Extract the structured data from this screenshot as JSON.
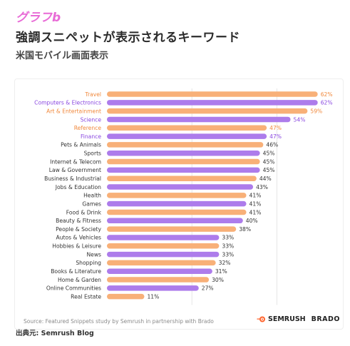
{
  "header": {
    "tag": "グラフb",
    "title": "強調スニペットが表示されるキーワード",
    "subtitle": "米国モバイル画面表示"
  },
  "footer": {
    "source": "Source: Featured Snippets study by Semrush in partnership with Brado",
    "credit": "出典元: Semrush Blog",
    "semrush_logo": "SEMRUSH",
    "brado_logo": "BRADO"
  },
  "colors": {
    "orange": "#f8b078",
    "purple": "#ad7ceb",
    "orange_label": "#f0883c",
    "purple_label": "#8a48e0",
    "dark_label": "#333333"
  },
  "chart_data": {
    "type": "bar",
    "orientation": "horizontal",
    "categories": [
      "Travel",
      "Computers & Electronics",
      "Art & Entertainment",
      "Science",
      "Reference",
      "Finance",
      "Pets & Animals",
      "Sports",
      "Internet & Telecom",
      "Law & Government",
      "Business & Industrial",
      "Jobs & Education",
      "Health",
      "Games",
      "Food & Drink",
      "Beauty & Fitness",
      "People & Society",
      "Autos & Vehicles",
      "Hobbies & Leisure",
      "News",
      "Shopping",
      "Books & Literature",
      "Home & Garden",
      "Online Communities",
      "Real Estate"
    ],
    "values": [
      62,
      62,
      59,
      54,
      47,
      47,
      46,
      45,
      45,
      45,
      44,
      43,
      41,
      41,
      41,
      40,
      38,
      33,
      33,
      33,
      32,
      31,
      30,
      27,
      11
    ],
    "value_labels": [
      "62%",
      "62%",
      "59%",
      "54%",
      "47%",
      "47%",
      "46%",
      "45%",
      "45%",
      "45%",
      "44%",
      "43%",
      "41%",
      "41%",
      "41%",
      "40%",
      "38%",
      "33%",
      "33%",
      "33%",
      "32%",
      "31%",
      "30%",
      "27%",
      "11%"
    ],
    "bar_colors": [
      "orange",
      "purple",
      "orange",
      "purple",
      "orange",
      "purple",
      "orange",
      "purple",
      "orange",
      "purple",
      "orange",
      "purple",
      "orange",
      "purple",
      "orange",
      "purple",
      "orange",
      "purple",
      "orange",
      "purple",
      "orange",
      "purple",
      "orange",
      "purple",
      "orange"
    ],
    "label_colors": [
      "orange",
      "purple",
      "orange",
      "purple",
      "orange",
      "purple",
      "dark",
      "dark",
      "dark",
      "dark",
      "dark",
      "dark",
      "dark",
      "dark",
      "dark",
      "dark",
      "dark",
      "dark",
      "dark",
      "dark",
      "dark",
      "dark",
      "dark",
      "dark",
      "dark"
    ],
    "xlim": [
      0,
      65
    ],
    "gridlines": [
      25,
      50
    ],
    "grid": true,
    "legend": "none"
  }
}
